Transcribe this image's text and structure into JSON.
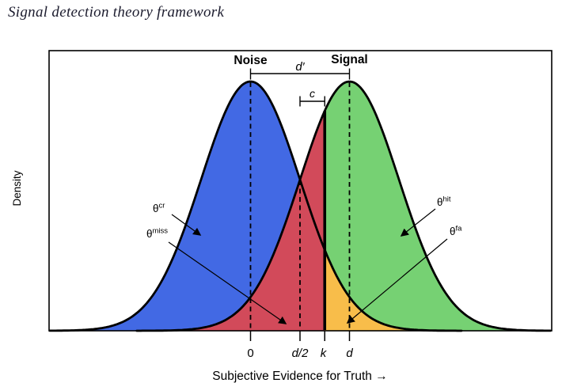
{
  "page": {
    "title": "Signal detection theory framework"
  },
  "chart_data": {
    "type": "area",
    "title": "Signal detection theory framework",
    "xlabel": "Subjective Evidence for Truth →",
    "ylabel": "Density",
    "x_tick_labels": [
      "0",
      "d/2",
      "k",
      "d"
    ],
    "x_tick_values_sigma": [
      0,
      1,
      1.5,
      2
    ],
    "axis_range_sigma": [
      -4.1,
      6.1
    ],
    "grid": false,
    "distributions": [
      {
        "name": "Noise",
        "mean_sigma": 0,
        "sd_sigma": 1,
        "fill": "#4269e4"
      },
      {
        "name": "Signal",
        "mean_sigma": 2,
        "sd_sigma": 1,
        "fill": "#76d173"
      }
    ],
    "criterion": {
      "label": "k",
      "value_sigma": 1.5,
      "style": "bold-solid-vertical"
    },
    "regions": [
      {
        "name": "correct-rejection",
        "color": "#4269e4"
      },
      {
        "name": "miss",
        "color": "#d24a5a"
      },
      {
        "name": "hit",
        "color": "#76d173"
      },
      {
        "name": "false-alarm",
        "color": "#f8bd4a"
      }
    ],
    "measures": [
      {
        "label": "d′",
        "from_sigma": 0,
        "to_sigma": 2
      },
      {
        "label": "c",
        "from_sigma": 1,
        "to_sigma": 1.5
      }
    ],
    "annotations": [
      {
        "base": "θ",
        "sup": "cr",
        "points_to": "correct-rejection"
      },
      {
        "base": "θ",
        "sup": "miss",
        "points_to": "miss"
      },
      {
        "base": "θ",
        "sup": "hit",
        "points_to": "hit"
      },
      {
        "base": "θ",
        "sup": "fa",
        "points_to": "false-alarm"
      }
    ],
    "line_color": "#000000"
  }
}
